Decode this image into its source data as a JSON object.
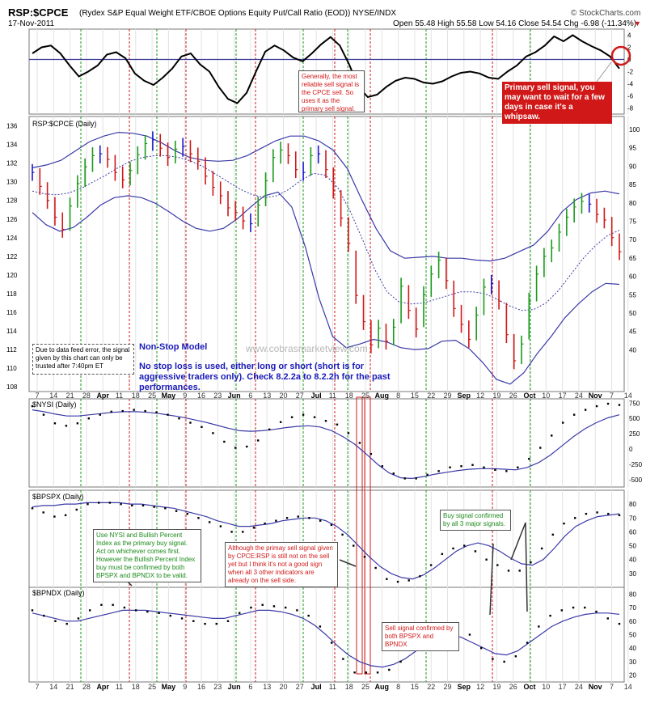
{
  "header": {
    "symbol": "RSP:$CPCE",
    "description": "(Rydex S&P Equal Weight ETF/CBOE Options Equity Put/Call Ratio (EOD)) NYSE/INDX",
    "brand": "© StockCharts.com",
    "date": "17-Nov-2011",
    "quote": "Open 55.48  High 55.58  Low 54.16  Close 54.54  Chg -6.98 (-11.34%)",
    "chg_marker": "▼"
  },
  "panels": {
    "osc_right_ticks": [
      "4",
      "2",
      "0",
      "-2",
      "-4",
      "-6",
      "-8"
    ],
    "price_label": "RSP:$CPCE (Daily)",
    "price_left_ticks": [
      "136",
      "134",
      "132",
      "130",
      "128",
      "126",
      "124",
      "122",
      "120",
      "118",
      "116",
      "114",
      "112",
      "110",
      "108"
    ],
    "price_right_ticks": [
      "100",
      "95",
      "90",
      "85",
      "80",
      "75",
      "70",
      "65",
      "60",
      "55",
      "50",
      "45",
      "40"
    ],
    "nysi_label": "$NYSI (Daily)",
    "nysi_ticks": [
      "750",
      "500",
      "250",
      "0",
      "-250",
      "-500"
    ],
    "bpspx_label": "$BPSPX (Daily)",
    "bpspx_ticks": [
      "80",
      "70",
      "60",
      "50",
      "40",
      "30"
    ],
    "bpndx_label": "$BPNDX (Daily)",
    "bpndx_ticks": [
      "80",
      "70",
      "60",
      "50",
      "40",
      "30",
      "20"
    ],
    "x_labels": [
      "7",
      "14",
      "21",
      "28",
      "Apr",
      "11",
      "18",
      "25",
      "May",
      "9",
      "16",
      "23",
      "Jun",
      "6",
      "13",
      "20",
      "27",
      "Jul",
      "11",
      "18",
      "25",
      "Aug",
      "8",
      "15",
      "22",
      "29",
      "Sep",
      "12",
      "19",
      "26",
      "Oct",
      "10",
      "17",
      "24",
      "Nov",
      "7",
      "14"
    ]
  },
  "annotations": {
    "osc_note": "Generally, the most reliable sell signal is the CPCE sell. So uses it as the primary sell signal.",
    "primary_sell": "Primary sell signal, you may want to wait for a few days in case it's a whipsaw.",
    "feed_error": "Due to data feed error, the signal given by this chart can only be trusted after 7:40pm ET",
    "model_title": "Non-Stop Model",
    "model_text": "No stop loss is used, either long or short (short is for aggressive traders only). Check 8.2.2a to 8.2.2h for the past performances.",
    "watermark": "www.cobrasmarketview.com",
    "buy_note": "Use NYSI and Bullish Percent Index as the primary buy signal. Act on whichever comes first. However the Bullish Percent Index buy must be confirmed by both BPSPX and BPNDX to be valid.",
    "buy_confirm": "Buy signal confirmed by all 3 major signals.",
    "sell_note": "Although the primay sell signal given by CPCE:RSP is still not on the sell yet but I think it's not a good sign when all 3 other indicators are already on the sell side.",
    "sell_confirm": "Sell signal confirmed by both BPSPX and BPNDX"
  },
  "chart_data": [
    {
      "type": "line",
      "title": "",
      "series": [
        {
          "name": "",
          "values": [
            1.0,
            2.0,
            2.3,
            1.0,
            -1.0,
            -2.8,
            -2.0,
            -1.0,
            0.8,
            1.2,
            0.2,
            -2.3,
            -3.5,
            -4.2,
            -3.0,
            -1.5,
            0.5,
            1.0,
            -0.8,
            -2.0,
            -4.5,
            -6.5,
            -7.2,
            -5.5,
            -2.0,
            1.3,
            2.3,
            1.5,
            0.3,
            -0.3,
            1.0,
            2.5,
            3.7,
            2.3,
            -0.8,
            -4.5,
            -6.2,
            -5.8,
            -4.5,
            -3.5,
            -3.0,
            -3.2,
            -3.8,
            -4.0,
            -3.6,
            -2.8,
            -2.2,
            -2.0,
            -2.3,
            -3.0,
            -3.2,
            -2.0,
            -1.0,
            0.5,
            1.2,
            2.3,
            3.8,
            3.0,
            4.0,
            3.0,
            2.2,
            1.5,
            0.5,
            -1.5
          ]
        }
      ],
      "ylim": [
        -9,
        5
      ]
    },
    {
      "type": "bar",
      "title": "RSP:$CPCE (Daily)",
      "close": [
        131.0,
        129.5,
        128.0,
        126.2,
        124.9,
        127.4,
        129.8,
        131.6,
        132.8,
        133.0,
        132.4,
        131.0,
        130.2,
        131.2,
        132.9,
        134.1,
        134.5,
        133.6,
        132.6,
        133.5,
        133.8,
        133.0,
        132.2,
        130.6,
        129.4,
        128.5,
        127.2,
        126.7,
        125.8,
        125.5,
        127.5,
        130.1,
        132.6,
        133.4,
        132.8,
        131.3,
        131.0,
        132.8,
        133.0,
        131.3,
        129.1,
        126.1,
        123.4,
        117.8,
        115.0,
        112.5,
        114.3,
        112.9,
        114.4,
        118.8,
        116.2,
        114.2,
        117.9,
        120.1,
        121.6,
        119.4,
        116.4,
        114.7,
        113.1,
        115.7,
        118.7,
        119.1,
        117.2,
        113.6,
        110.8,
        112.6,
        117.2,
        120.1,
        122.0,
        122.9,
        124.6,
        126.2,
        127.3,
        127.9,
        127.6,
        126.5,
        125.9,
        124.0,
        122.5
      ],
      "price_range": [
        107.5,
        137
      ],
      "ma20": [
        129.0,
        128.7,
        128.6,
        128.8,
        129.3,
        130.0,
        130.7,
        131.5,
        132.2,
        132.6,
        132.8,
        132.8,
        132.6,
        132.2,
        131.6,
        130.8,
        130.0,
        129.2,
        128.6,
        128.3,
        128.5,
        129.2,
        130.2,
        130.9,
        130.7,
        129.3,
        126.8,
        123.8,
        120.6,
        118.2,
        117.1,
        116.9,
        117.0,
        117.4,
        117.8,
        118.2,
        118.2,
        118.0,
        117.4,
        116.7,
        116.2,
        116.3,
        117.0,
        118.3,
        120.0,
        121.7,
        123.1,
        124.2,
        124.8
      ],
      "bb_upper": [
        131.5,
        131.8,
        132.3,
        133.3,
        134.3,
        134.9,
        135.3,
        135.2,
        134.9,
        134.2,
        133.3,
        132.6,
        132.3,
        132.2,
        132.3,
        132.8,
        133.6,
        134.4,
        134.9,
        134.9,
        134.4,
        133.4,
        131.4,
        128.1,
        125.0,
        122.6,
        121.8,
        121.9,
        122.0,
        121.8,
        121.8,
        121.6,
        121.5,
        121.8,
        122.5,
        123.2,
        124.7,
        126.8,
        128.1,
        128.8,
        129.0,
        128.7
      ],
      "bb_lower": [
        126.7,
        125.4,
        124.7,
        125.1,
        126.2,
        127.5,
        128.3,
        128.5,
        128.3,
        127.7,
        126.8,
        125.8,
        125.0,
        124.7,
        125.0,
        126.0,
        127.3,
        128.5,
        128.9,
        127.3,
        123.0,
        117.5,
        113.4,
        112.2,
        112.6,
        113.1,
        112.8,
        112.2,
        112.0,
        112.1,
        112.9,
        113.0,
        112.1,
        110.6,
        108.8,
        108.3,
        109.5,
        111.6,
        113.4,
        115.4,
        116.9,
        118.2,
        119.1,
        119.0
      ],
      "ma_style": "dotted",
      "series_colors": {
        "up": "#1a9a1a",
        "down": "#d11818",
        "flat": "#1a1ac8"
      }
    },
    {
      "type": "line",
      "title": "$NYSI (Daily)",
      "series": [
        {
          "name": "",
          "values": [
            700,
            560,
            420,
            380,
            420,
            500,
            560,
            610,
            620,
            640,
            620,
            600,
            560,
            500,
            430,
            360,
            260,
            120,
            20,
            40,
            140,
            320,
            440,
            520,
            560,
            520,
            460,
            400,
            260,
            100,
            -80,
            -280,
            -400,
            -480,
            -480,
            -420,
            -360,
            -300,
            -280,
            -260,
            -300,
            -340,
            -360,
            -300,
            -160,
            20,
            220,
            430,
            560,
            640,
            700,
            740,
            720
          ]
        },
        {
          "name": "",
          "values": [
            640,
            610,
            570,
            540,
            540,
            560,
            580,
            600,
            610,
            610,
            600,
            580,
            550,
            520,
            480,
            440,
            390,
            340,
            300,
            290,
            300,
            320,
            350,
            370,
            380,
            360,
            300,
            200,
            80,
            -80,
            -250,
            -390,
            -470,
            -480,
            -450,
            -410,
            -380,
            -350,
            -330,
            -320,
            -320,
            -330,
            -340,
            -300,
            -220,
            -100,
            50,
            200,
            330,
            430,
            510,
            560
          ]
        }
      ],
      "ylim": [
        -620,
        820
      ]
    },
    {
      "type": "line",
      "title": "$BPSPX (Daily)",
      "series": [
        {
          "name": "",
          "values": [
            77,
            74,
            71,
            72,
            76,
            80,
            81,
            81,
            80,
            79,
            79,
            78,
            77,
            75,
            73,
            70,
            67,
            64,
            60,
            60,
            63,
            66,
            68,
            70,
            71,
            70,
            68,
            65,
            58,
            50,
            42,
            34,
            26,
            24,
            25,
            28,
            36,
            44,
            48,
            50,
            46,
            40,
            36,
            32,
            32,
            38,
            48,
            58,
            66,
            70,
            73,
            74,
            73,
            72
          ]
        },
        {
          "name": "",
          "values": [
            78,
            79,
            79,
            80,
            80,
            81,
            81,
            81,
            81,
            80,
            80,
            79,
            78,
            77,
            75,
            73,
            71,
            68,
            66,
            64,
            64,
            65,
            66,
            68,
            69,
            70,
            70,
            68,
            64,
            58,
            50,
            42,
            35,
            30,
            27,
            26,
            29,
            34,
            40,
            46,
            50,
            52,
            50,
            46,
            41,
            37,
            36,
            40,
            48,
            57,
            64,
            68,
            71,
            72,
            73
          ]
        }
      ],
      "ylim": [
        20,
        90
      ]
    },
    {
      "type": "line",
      "title": "$BPNDX (Daily)",
      "series": [
        {
          "name": "",
          "values": [
            68,
            64,
            60,
            58,
            62,
            68,
            72,
            72,
            70,
            68,
            67,
            66,
            64,
            62,
            60,
            58,
            58,
            60,
            66,
            70,
            72,
            71,
            70,
            68,
            64,
            56,
            44,
            32,
            22,
            22,
            22,
            24,
            30,
            40,
            48,
            54,
            58,
            56,
            50,
            40,
            32,
            30,
            34,
            44,
            56,
            64,
            68,
            70,
            70,
            67,
            62,
            58
          ]
        },
        {
          "name": "",
          "values": [
            66,
            64,
            62,
            60,
            60,
            62,
            64,
            66,
            68,
            68,
            68,
            67,
            66,
            65,
            64,
            63,
            62,
            62,
            64,
            66,
            68,
            68,
            67,
            65,
            62,
            57,
            50,
            42,
            35,
            30,
            27,
            26,
            28,
            32,
            38,
            44,
            48,
            50,
            48,
            44,
            40,
            36,
            35,
            38,
            44,
            50,
            56,
            60,
            63,
            65,
            66,
            66,
            65
          ]
        }
      ],
      "ylim": [
        15,
        85
      ]
    }
  ]
}
